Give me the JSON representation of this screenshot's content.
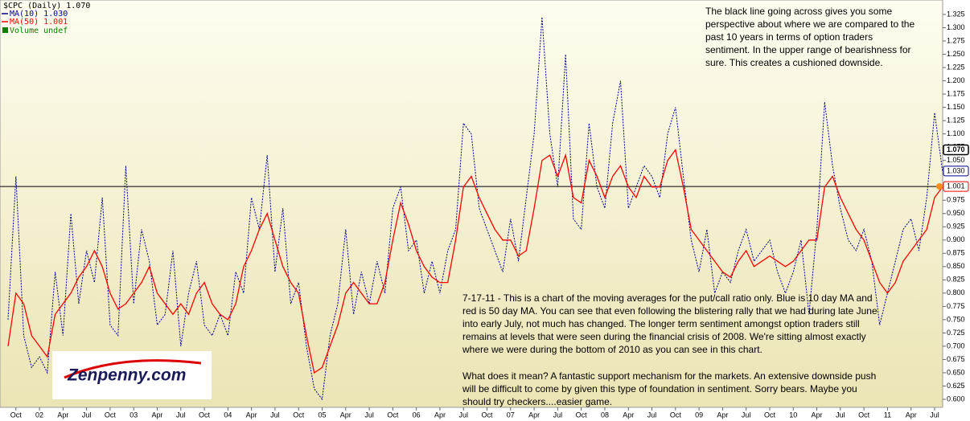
{
  "chart_data": {
    "type": "line",
    "title": "$CPC (Daily) 1.070",
    "legend_extra": "Volume undef",
    "categories": [
      null,
      "Oct",
      null,
      null,
      "02",
      null,
      null,
      "Apr",
      null,
      null,
      "Jul",
      null,
      null,
      "Oct",
      null,
      null,
      "03",
      null,
      null,
      "Apr",
      null,
      null,
      "Jul",
      null,
      null,
      "Oct",
      null,
      null,
      "04",
      null,
      null,
      "Apr",
      null,
      null,
      "Jul",
      null,
      null,
      "Oct",
      null,
      null,
      "05",
      null,
      null,
      "Apr",
      null,
      null,
      "Jul",
      null,
      null,
      "Oct",
      null,
      null,
      "06",
      null,
      null,
      "Apr",
      null,
      null,
      "Jul",
      null,
      null,
      "Oct",
      null,
      null,
      "07",
      null,
      null,
      "Apr",
      null,
      null,
      "Jul",
      null,
      null,
      "Oct",
      null,
      null,
      "08",
      null,
      null,
      "Apr",
      null,
      null,
      "Jul",
      null,
      null,
      "Oct",
      null,
      null,
      "09",
      null,
      null,
      "Apr",
      null,
      null,
      "Jul",
      null,
      null,
      "Oct",
      null,
      null,
      "10",
      null,
      null,
      "Apr",
      null,
      null,
      "Jul",
      null,
      null,
      "Oct",
      null,
      null,
      "11",
      null,
      null,
      "Apr",
      null,
      null,
      "Jul",
      null
    ],
    "series": [
      {
        "name": "MA(10) 1.030",
        "color": "#00008b",
        "dashed": true,
        "values": [
          0.75,
          1.02,
          0.72,
          0.66,
          0.68,
          0.65,
          0.84,
          0.72,
          0.95,
          0.78,
          0.88,
          0.82,
          0.98,
          0.74,
          0.72,
          1.04,
          0.78,
          0.92,
          0.86,
          0.74,
          0.76,
          0.88,
          0.7,
          0.8,
          0.86,
          0.74,
          0.72,
          0.76,
          0.72,
          0.84,
          0.8,
          0.98,
          0.92,
          1.06,
          0.84,
          0.96,
          0.78,
          0.82,
          0.7,
          0.62,
          0.6,
          0.72,
          0.78,
          0.92,
          0.76,
          0.84,
          0.78,
          0.86,
          0.8,
          0.96,
          1.0,
          0.88,
          0.9,
          0.8,
          0.86,
          0.8,
          0.88,
          0.92,
          1.12,
          1.1,
          0.96,
          0.92,
          0.88,
          0.84,
          0.94,
          0.86,
          0.98,
          1.1,
          1.32,
          1.1,
          1.0,
          1.25,
          0.94,
          0.92,
          1.12,
          1.0,
          0.96,
          1.12,
          1.2,
          0.96,
          1.0,
          1.04,
          1.02,
          0.98,
          1.1,
          1.15,
          1.02,
          0.9,
          0.84,
          0.92,
          0.8,
          0.84,
          0.82,
          0.88,
          0.92,
          0.86,
          0.88,
          0.9,
          0.84,
          0.8,
          0.84,
          0.9,
          0.76,
          0.92,
          1.16,
          1.04,
          0.96,
          0.9,
          0.88,
          0.92,
          0.86,
          0.74,
          0.8,
          0.86,
          0.92,
          0.94,
          0.88,
          0.98,
          1.14,
          1.03
        ]
      },
      {
        "name": "MA(50) 1.001",
        "color": "#ff0000",
        "dashed": false,
        "values": [
          0.7,
          0.8,
          0.78,
          0.72,
          0.7,
          0.68,
          0.76,
          0.78,
          0.8,
          0.83,
          0.85,
          0.88,
          0.85,
          0.8,
          0.77,
          0.78,
          0.8,
          0.82,
          0.85,
          0.8,
          0.78,
          0.76,
          0.78,
          0.76,
          0.8,
          0.82,
          0.78,
          0.76,
          0.75,
          0.78,
          0.85,
          0.88,
          0.92,
          0.95,
          0.9,
          0.85,
          0.82,
          0.8,
          0.72,
          0.65,
          0.66,
          0.7,
          0.74,
          0.8,
          0.82,
          0.8,
          0.78,
          0.78,
          0.82,
          0.9,
          0.97,
          0.93,
          0.88,
          0.85,
          0.83,
          0.82,
          0.82,
          0.9,
          1.0,
          1.02,
          0.98,
          0.95,
          0.92,
          0.9,
          0.9,
          0.87,
          0.88,
          0.96,
          1.05,
          1.06,
          1.02,
          1.06,
          0.98,
          0.97,
          1.05,
          1.02,
          0.98,
          1.02,
          1.04,
          1.0,
          0.98,
          1.02,
          1.0,
          1.0,
          1.05,
          1.07,
          1.0,
          0.92,
          0.9,
          0.88,
          0.86,
          0.84,
          0.83,
          0.86,
          0.88,
          0.85,
          0.86,
          0.87,
          0.86,
          0.85,
          0.86,
          0.88,
          0.9,
          0.9,
          1.0,
          1.02,
          0.98,
          0.95,
          0.92,
          0.9,
          0.86,
          0.82,
          0.8,
          0.82,
          0.86,
          0.88,
          0.9,
          0.92,
          0.98,
          1.0
        ]
      }
    ],
    "reference_line": 1.001,
    "last_value_labels": [
      {
        "value": 1.07,
        "label": "1.070",
        "color": "#000000"
      },
      {
        "value": 1.03,
        "label": "1.030",
        "color": "#00008b"
      },
      {
        "value": 1.001,
        "label": "1.001",
        "color": "#ff0000"
      }
    ],
    "ylim": [
      0.6,
      1.325
    ],
    "yticks": [
      {
        "value": 0.6,
        "label": "0.600"
      },
      {
        "value": 0.625,
        "label": "0.625"
      },
      {
        "value": 0.65,
        "label": "0.650"
      },
      {
        "value": 0.675,
        "label": "0.675"
      },
      {
        "value": 0.7,
        "label": "0.700"
      },
      {
        "value": 0.725,
        "label": "0.725"
      },
      {
        "value": 0.75,
        "label": "0.750"
      },
      {
        "value": 0.775,
        "label": "0.775"
      },
      {
        "value": 0.8,
        "label": "0.800"
      },
      {
        "value": 0.825,
        "label": "0.825"
      },
      {
        "value": 0.85,
        "label": "0.850"
      },
      {
        "value": 0.875,
        "label": "0.875"
      },
      {
        "value": 0.9,
        "label": "0.900"
      },
      {
        "value": 0.925,
        "label": "0.925"
      },
      {
        "value": 0.95,
        "label": "0.950"
      },
      {
        "value": 0.975,
        "label": "0.975"
      },
      {
        "value": 1.0,
        "label": "1.000"
      },
      {
        "value": 1.025,
        "label": "1.025"
      },
      {
        "value": 1.05,
        "label": "1.050"
      },
      {
        "value": 1.075,
        "label": "1.075"
      },
      {
        "value": 1.1,
        "label": "1.100"
      },
      {
        "value": 1.125,
        "label": "1.125"
      },
      {
        "value": 1.15,
        "label": "1.150"
      },
      {
        "value": 1.175,
        "label": "1.175"
      },
      {
        "value": 1.2,
        "label": "1.200"
      },
      {
        "value": 1.225,
        "label": "1.225"
      },
      {
        "value": 1.25,
        "label": "1.250"
      },
      {
        "value": 1.275,
        "label": "1.275"
      },
      {
        "value": 1.3,
        "label": "1.300"
      },
      {
        "value": 1.325,
        "label": "1.325"
      }
    ],
    "annotations": [
      {
        "lines": [
          "The black line going across gives you some",
          "perspective about where we are compared to the",
          "past 10 years in terms of option traders",
          "sentiment. In the upper range of bearishness for",
          "sure. This creates a cushioned downside."
        ]
      },
      {
        "lines": [
          "7-17-11 - This is a chart of the moving averages for the put/call ratio only. Blue is 10 day MA and",
          "red is 50 day MA. You can see that even following the blistering rally that we had during late June",
          "into early July, not much has changed. The longer term sentiment amongst option traders still",
          "remains at levels that were seen during the financial crisis of 2008. We're sitting almost exactly",
          "where we were during the bottom of 2010 as you can see in this chart."
        ]
      },
      {
        "lines": [
          "What does it mean? A fantastic support mechanism for the markets. An extensive downside push",
          "will be difficult to come by given this type of foundation in sentiment. Sorry bears. Maybe you",
          "should try checkers....easier game."
        ]
      }
    ],
    "logo": "Zenpenny.com"
  }
}
